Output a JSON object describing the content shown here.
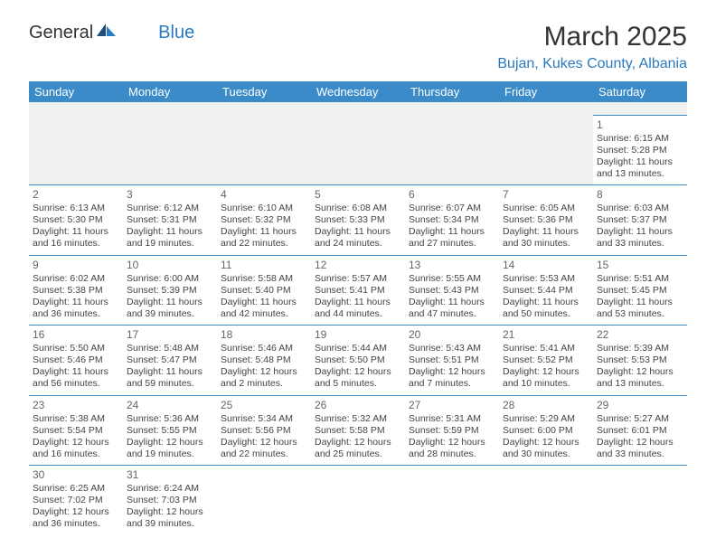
{
  "logo": {
    "part1": "General",
    "part2": "Blue"
  },
  "title": "March 2025",
  "subtitle": "Bujan, Kukes County, Albania",
  "colors": {
    "header_bg": "#3b8bc8",
    "header_fg": "#ffffff",
    "accent": "#2a7abf",
    "cell_border": "#3b8bc8",
    "blank_bg": "#f0f0f0",
    "text": "#444444",
    "daynum": "#666666"
  },
  "weekdays": [
    "Sunday",
    "Monday",
    "Tuesday",
    "Wednesday",
    "Thursday",
    "Friday",
    "Saturday"
  ],
  "cells": [
    [
      null,
      null,
      null,
      null,
      null,
      null,
      {
        "n": "1",
        "sr": "6:15 AM",
        "ss": "5:28 PM",
        "dl": "11 hours and 13 minutes."
      }
    ],
    [
      {
        "n": "2",
        "sr": "6:13 AM",
        "ss": "5:30 PM",
        "dl": "11 hours and 16 minutes."
      },
      {
        "n": "3",
        "sr": "6:12 AM",
        "ss": "5:31 PM",
        "dl": "11 hours and 19 minutes."
      },
      {
        "n": "4",
        "sr": "6:10 AM",
        "ss": "5:32 PM",
        "dl": "11 hours and 22 minutes."
      },
      {
        "n": "5",
        "sr": "6:08 AM",
        "ss": "5:33 PM",
        "dl": "11 hours and 24 minutes."
      },
      {
        "n": "6",
        "sr": "6:07 AM",
        "ss": "5:34 PM",
        "dl": "11 hours and 27 minutes."
      },
      {
        "n": "7",
        "sr": "6:05 AM",
        "ss": "5:36 PM",
        "dl": "11 hours and 30 minutes."
      },
      {
        "n": "8",
        "sr": "6:03 AM",
        "ss": "5:37 PM",
        "dl": "11 hours and 33 minutes."
      }
    ],
    [
      {
        "n": "9",
        "sr": "6:02 AM",
        "ss": "5:38 PM",
        "dl": "11 hours and 36 minutes."
      },
      {
        "n": "10",
        "sr": "6:00 AM",
        "ss": "5:39 PM",
        "dl": "11 hours and 39 minutes."
      },
      {
        "n": "11",
        "sr": "5:58 AM",
        "ss": "5:40 PM",
        "dl": "11 hours and 42 minutes."
      },
      {
        "n": "12",
        "sr": "5:57 AM",
        "ss": "5:41 PM",
        "dl": "11 hours and 44 minutes."
      },
      {
        "n": "13",
        "sr": "5:55 AM",
        "ss": "5:43 PM",
        "dl": "11 hours and 47 minutes."
      },
      {
        "n": "14",
        "sr": "5:53 AM",
        "ss": "5:44 PM",
        "dl": "11 hours and 50 minutes."
      },
      {
        "n": "15",
        "sr": "5:51 AM",
        "ss": "5:45 PM",
        "dl": "11 hours and 53 minutes."
      }
    ],
    [
      {
        "n": "16",
        "sr": "5:50 AM",
        "ss": "5:46 PM",
        "dl": "11 hours and 56 minutes."
      },
      {
        "n": "17",
        "sr": "5:48 AM",
        "ss": "5:47 PM",
        "dl": "11 hours and 59 minutes."
      },
      {
        "n": "18",
        "sr": "5:46 AM",
        "ss": "5:48 PM",
        "dl": "12 hours and 2 minutes."
      },
      {
        "n": "19",
        "sr": "5:44 AM",
        "ss": "5:50 PM",
        "dl": "12 hours and 5 minutes."
      },
      {
        "n": "20",
        "sr": "5:43 AM",
        "ss": "5:51 PM",
        "dl": "12 hours and 7 minutes."
      },
      {
        "n": "21",
        "sr": "5:41 AM",
        "ss": "5:52 PM",
        "dl": "12 hours and 10 minutes."
      },
      {
        "n": "22",
        "sr": "5:39 AM",
        "ss": "5:53 PM",
        "dl": "12 hours and 13 minutes."
      }
    ],
    [
      {
        "n": "23",
        "sr": "5:38 AM",
        "ss": "5:54 PM",
        "dl": "12 hours and 16 minutes."
      },
      {
        "n": "24",
        "sr": "5:36 AM",
        "ss": "5:55 PM",
        "dl": "12 hours and 19 minutes."
      },
      {
        "n": "25",
        "sr": "5:34 AM",
        "ss": "5:56 PM",
        "dl": "12 hours and 22 minutes."
      },
      {
        "n": "26",
        "sr": "5:32 AM",
        "ss": "5:58 PM",
        "dl": "12 hours and 25 minutes."
      },
      {
        "n": "27",
        "sr": "5:31 AM",
        "ss": "5:59 PM",
        "dl": "12 hours and 28 minutes."
      },
      {
        "n": "28",
        "sr": "5:29 AM",
        "ss": "6:00 PM",
        "dl": "12 hours and 30 minutes."
      },
      {
        "n": "29",
        "sr": "5:27 AM",
        "ss": "6:01 PM",
        "dl": "12 hours and 33 minutes."
      }
    ],
    [
      {
        "n": "30",
        "sr": "6:25 AM",
        "ss": "7:02 PM",
        "dl": "12 hours and 36 minutes."
      },
      {
        "n": "31",
        "sr": "6:24 AM",
        "ss": "7:03 PM",
        "dl": "12 hours and 39 minutes."
      },
      null,
      null,
      null,
      null,
      null
    ]
  ],
  "labels": {
    "sunrise": "Sunrise:",
    "sunset": "Sunset:",
    "daylight": "Daylight:"
  }
}
